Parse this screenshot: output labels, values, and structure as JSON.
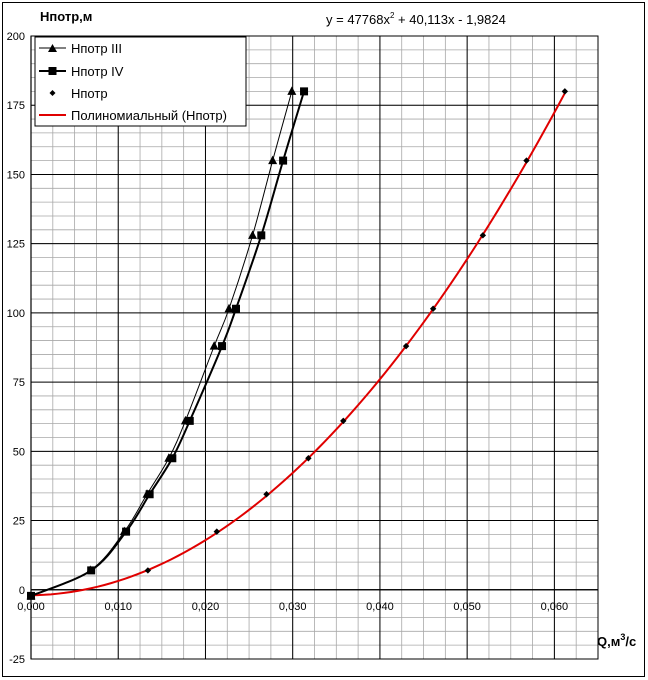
{
  "chart_data": {
    "type": "line",
    "ylabel": "Нпотр,м",
    "xlabel_base": "Q,м",
    "xlabel_sup": "3",
    "xlabel_tail": "/с",
    "equation": {
      "prefix": "y = 47768x",
      "sup": "2",
      "suffix": " + 40,113x - 1,9824"
    },
    "xlim": [
      0,
      0.065
    ],
    "ylim": [
      -25,
      200
    ],
    "x_major_ticks": [
      0,
      0.01,
      0.02,
      0.03,
      0.04,
      0.05,
      0.06
    ],
    "x_tick_labels": [
      "0,000",
      "0,010",
      "0,020",
      "0,030",
      "0,040",
      "0,050",
      "0,060"
    ],
    "y_major_ticks": [
      -25,
      0,
      25,
      50,
      75,
      100,
      125,
      150,
      175,
      200
    ],
    "y_tick_labels": [
      "-25",
      "0",
      "25",
      "50",
      "75",
      "100",
      "125",
      "150",
      "175",
      "200"
    ],
    "x_minor_step": 0.0025,
    "y_minor_step": 5,
    "grid": true,
    "legend_position": "top-left",
    "series": [
      {
        "name": "Нпотр III",
        "marker": "triangle",
        "color": "#000000",
        "x": [
          0,
          0.0068,
          0.0107,
          0.0133,
          0.0158,
          0.0177,
          0.021,
          0.0227,
          0.0254,
          0.0277,
          0.0299
        ],
        "y": [
          -2.2,
          7,
          21,
          34.5,
          47.5,
          61,
          88,
          101.5,
          128,
          155,
          180
        ]
      },
      {
        "name": "Нпотр IV",
        "marker": "square",
        "color": "#000000",
        "x": [
          0,
          0.0069,
          0.0109,
          0.0136,
          0.0162,
          0.0182,
          0.0219,
          0.0235,
          0.0264,
          0.0289,
          0.0313
        ],
        "y": [
          -2.2,
          7,
          21,
          34.5,
          47.5,
          61,
          88,
          101.5,
          128,
          155,
          180
        ]
      },
      {
        "name": "Нпотр",
        "marker": "diamond",
        "color": "#000000",
        "x": [
          0,
          0.0134,
          0.0213,
          0.027,
          0.0318,
          0.0358,
          0.043,
          0.0461,
          0.0518,
          0.0568,
          0.0612
        ],
        "y": [
          -2.2,
          7,
          21,
          34.5,
          47.5,
          61,
          88,
          101.5,
          128,
          155,
          180
        ]
      },
      {
        "name": "Полиномиальный (Нпотр)",
        "marker": "none",
        "color": "#e00000",
        "x_range": [
          0,
          0.0612
        ],
        "coefficients": [
          47768,
          40.113,
          -1.9824
        ]
      }
    ]
  }
}
